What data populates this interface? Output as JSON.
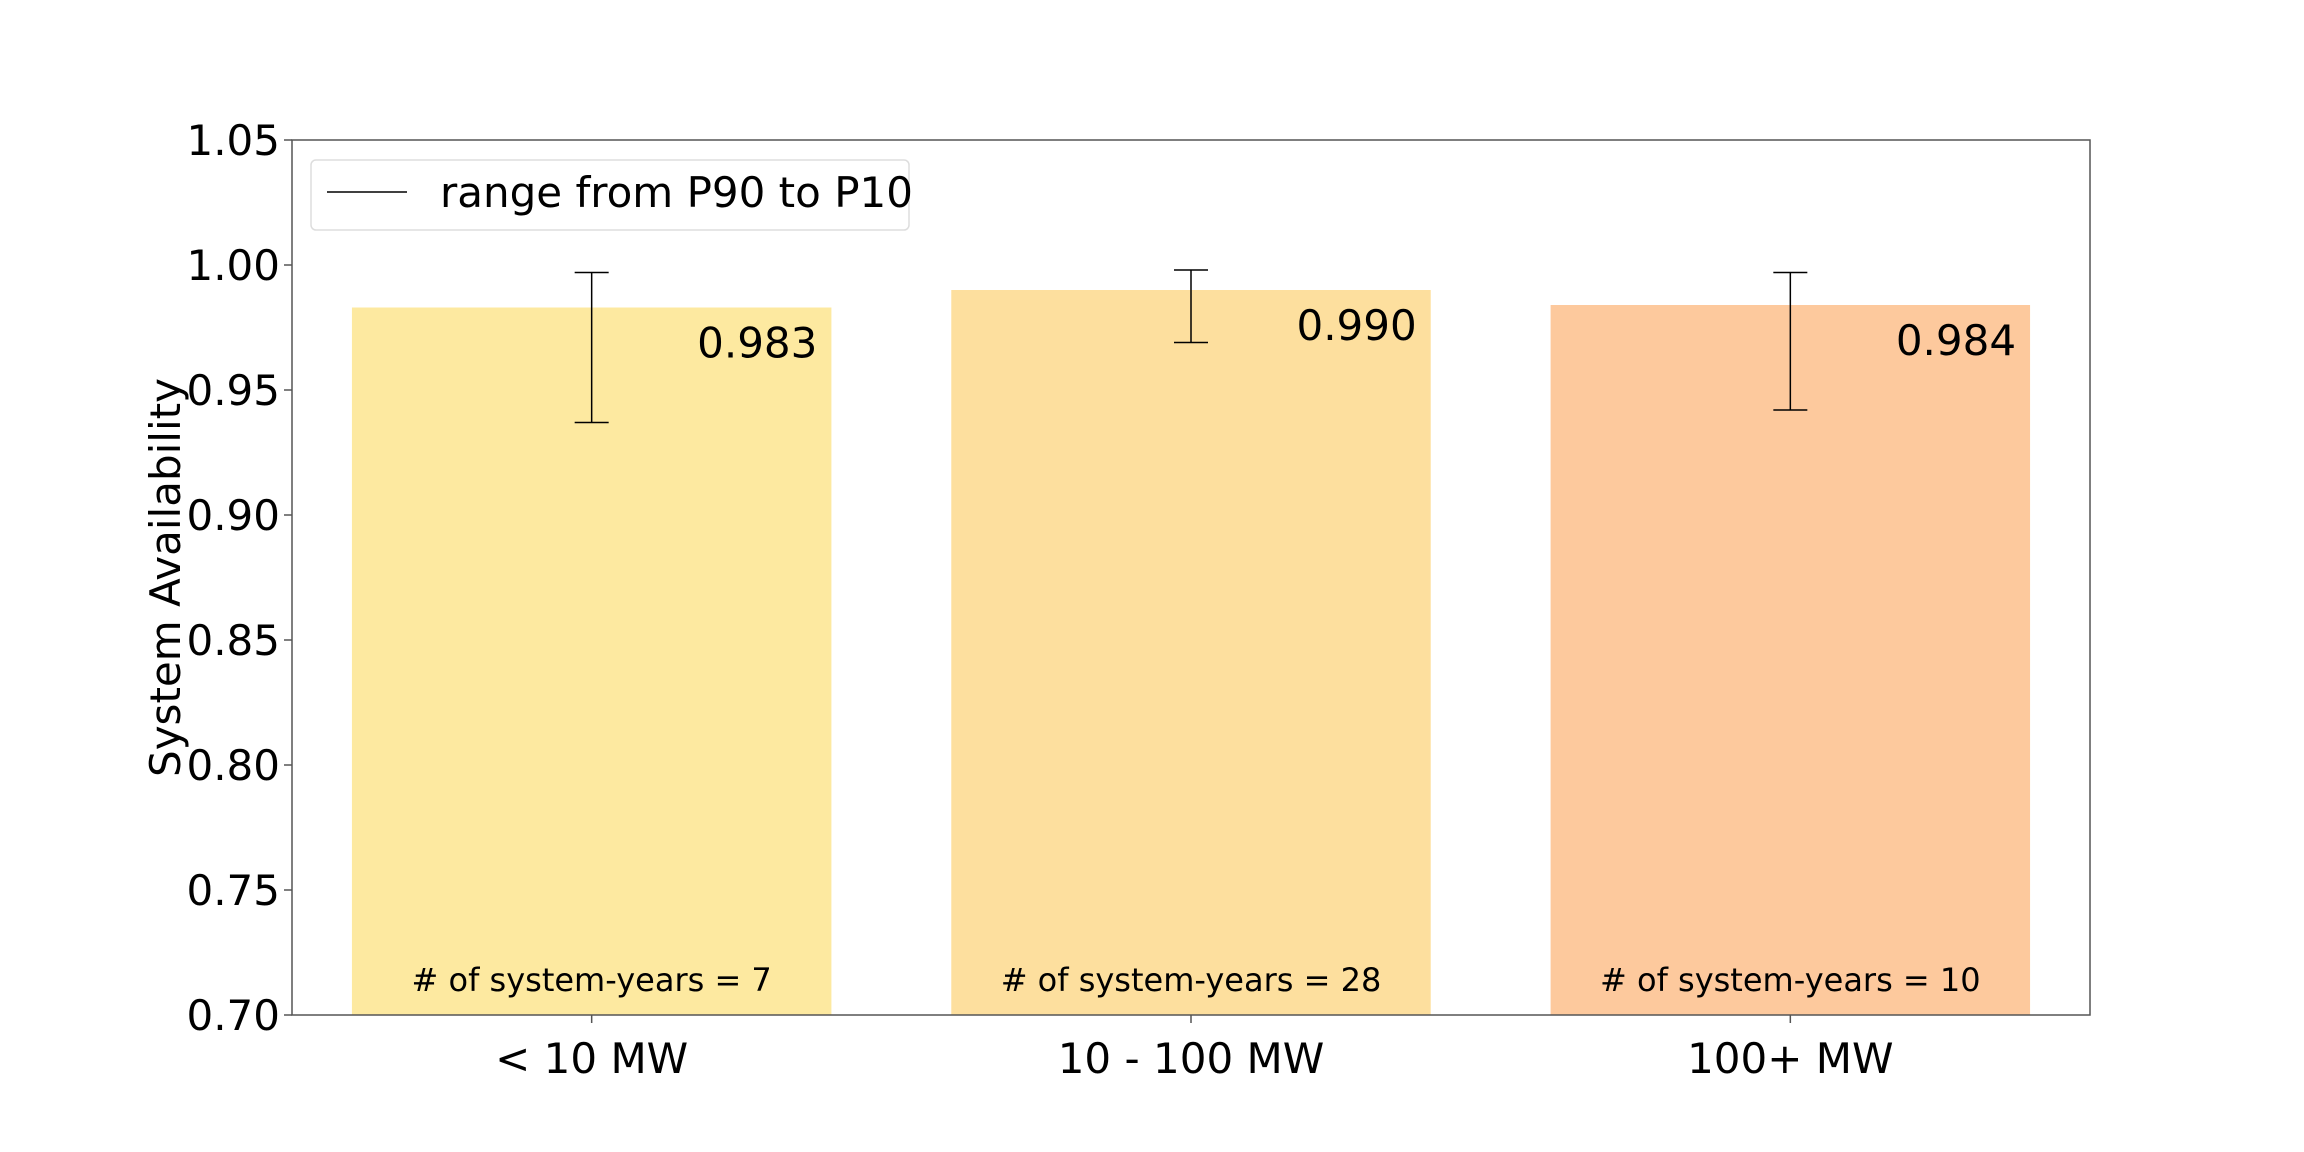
{
  "chart_data": {
    "type": "bar",
    "ylabel": "System Availability",
    "ylim": [
      0.7,
      1.05
    ],
    "yticks": [
      "0.70",
      "0.75",
      "0.80",
      "0.85",
      "0.90",
      "0.95",
      "1.00",
      "1.05"
    ],
    "categories": [
      "< 10 MW",
      "10 - 100 MW",
      "100+ MW"
    ],
    "values": [
      0.983,
      0.99,
      0.984
    ],
    "value_labels": [
      "0.983",
      "0.990",
      "0.984"
    ],
    "error_low": [
      0.937,
      0.969,
      0.942
    ],
    "error_high": [
      0.997,
      0.998,
      0.997
    ],
    "count_labels": [
      "# of system-years = 7",
      "# of system-years = 28",
      "# of system-years = 10"
    ],
    "colors": [
      "#fde9a0",
      "#fddf9e",
      "#fdc99d"
    ],
    "legend": {
      "label": "range from P90 to P10",
      "placement": "top-left"
    },
    "grid": false
  }
}
